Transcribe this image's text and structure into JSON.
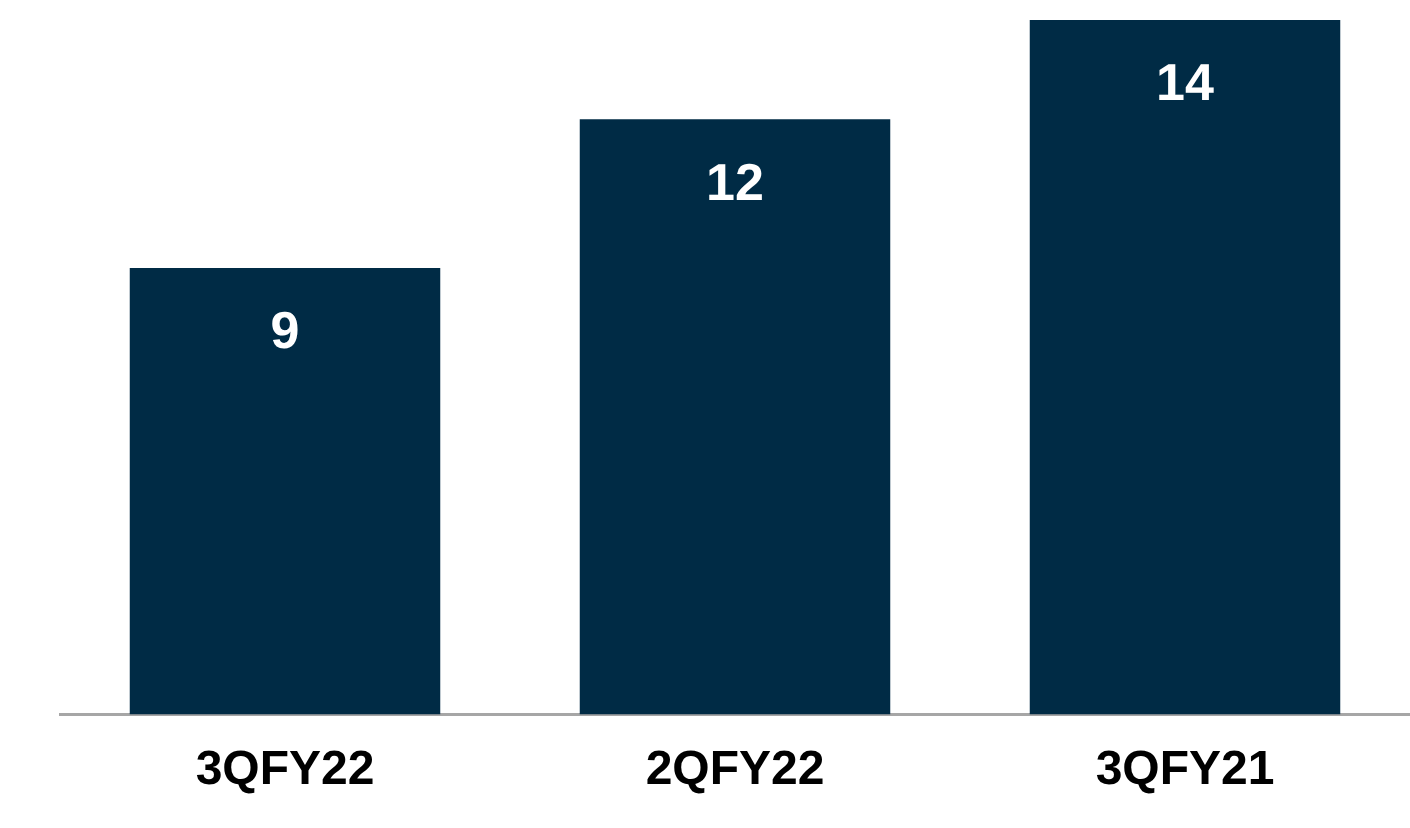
{
  "chart_data": {
    "type": "bar",
    "categories": [
      "3QFY22",
      "2QFY22",
      "3QFY21"
    ],
    "values": [
      9,
      12,
      14
    ],
    "color": "#002b45",
    "data_labels": true,
    "grid": false,
    "legend": false
  }
}
